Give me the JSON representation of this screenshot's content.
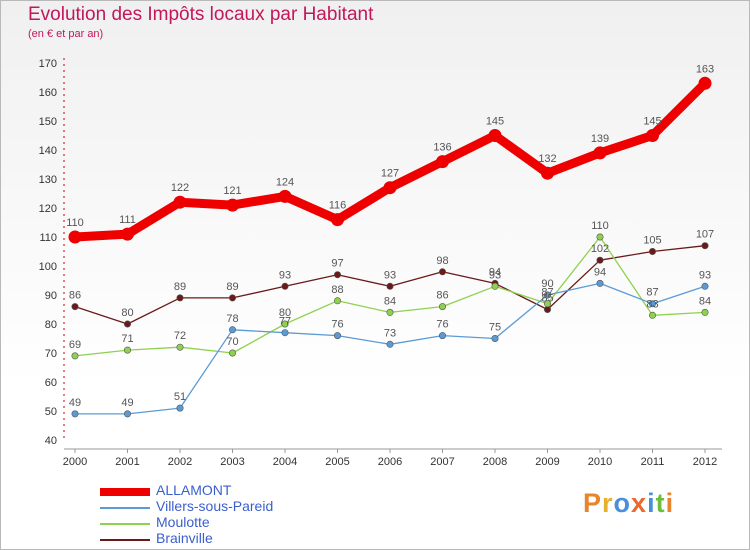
{
  "header": {
    "title": "Evolution des Impôts locaux par Habitant",
    "subtitle": "(en € et par an)"
  },
  "brand": {
    "text": "Proxiti",
    "colors": [
      "#e8842c",
      "#e8b12c",
      "#4a90d9",
      "#e86a2c",
      "#4a90d9",
      "#6cbf3c",
      "#e8842c"
    ]
  },
  "chart_data": {
    "type": "line",
    "title": "Evolution des Impôts locaux par Habitant",
    "subtitle": "(en € et par an)",
    "xlabel": "",
    "ylabel": "",
    "ylim": [
      40,
      170
    ],
    "yticks": [
      40,
      50,
      60,
      70,
      80,
      90,
      100,
      110,
      120,
      130,
      140,
      150,
      160,
      170
    ],
    "grid": false,
    "legend": "bottom-left",
    "categories": [
      "2000",
      "2001",
      "2002",
      "2003",
      "2004",
      "2005",
      "2006",
      "2007",
      "2008",
      "2009",
      "2010",
      "2011",
      "2012"
    ],
    "series": [
      {
        "name": "ALLAMONT",
        "color": "#ee0000",
        "values": [
          110,
          111,
          122,
          121,
          124,
          116,
          127,
          136,
          145,
          132,
          139,
          145,
          163
        ]
      },
      {
        "name": "Villers-sous-Pareid",
        "color": "#5b9bd5",
        "values": [
          49,
          49,
          51,
          78,
          77,
          76,
          73,
          76,
          75,
          90,
          94,
          87,
          93
        ]
      },
      {
        "name": "Moulotte",
        "color": "#8fd14f",
        "values": [
          69,
          71,
          72,
          70,
          80,
          88,
          84,
          86,
          93,
          87,
          110,
          83,
          84
        ]
      },
      {
        "name": "Brainville",
        "color": "#6b1a1a",
        "values": [
          86,
          80,
          89,
          89,
          93,
          97,
          93,
          98,
          94,
          85,
          102,
          105,
          107
        ]
      }
    ]
  }
}
